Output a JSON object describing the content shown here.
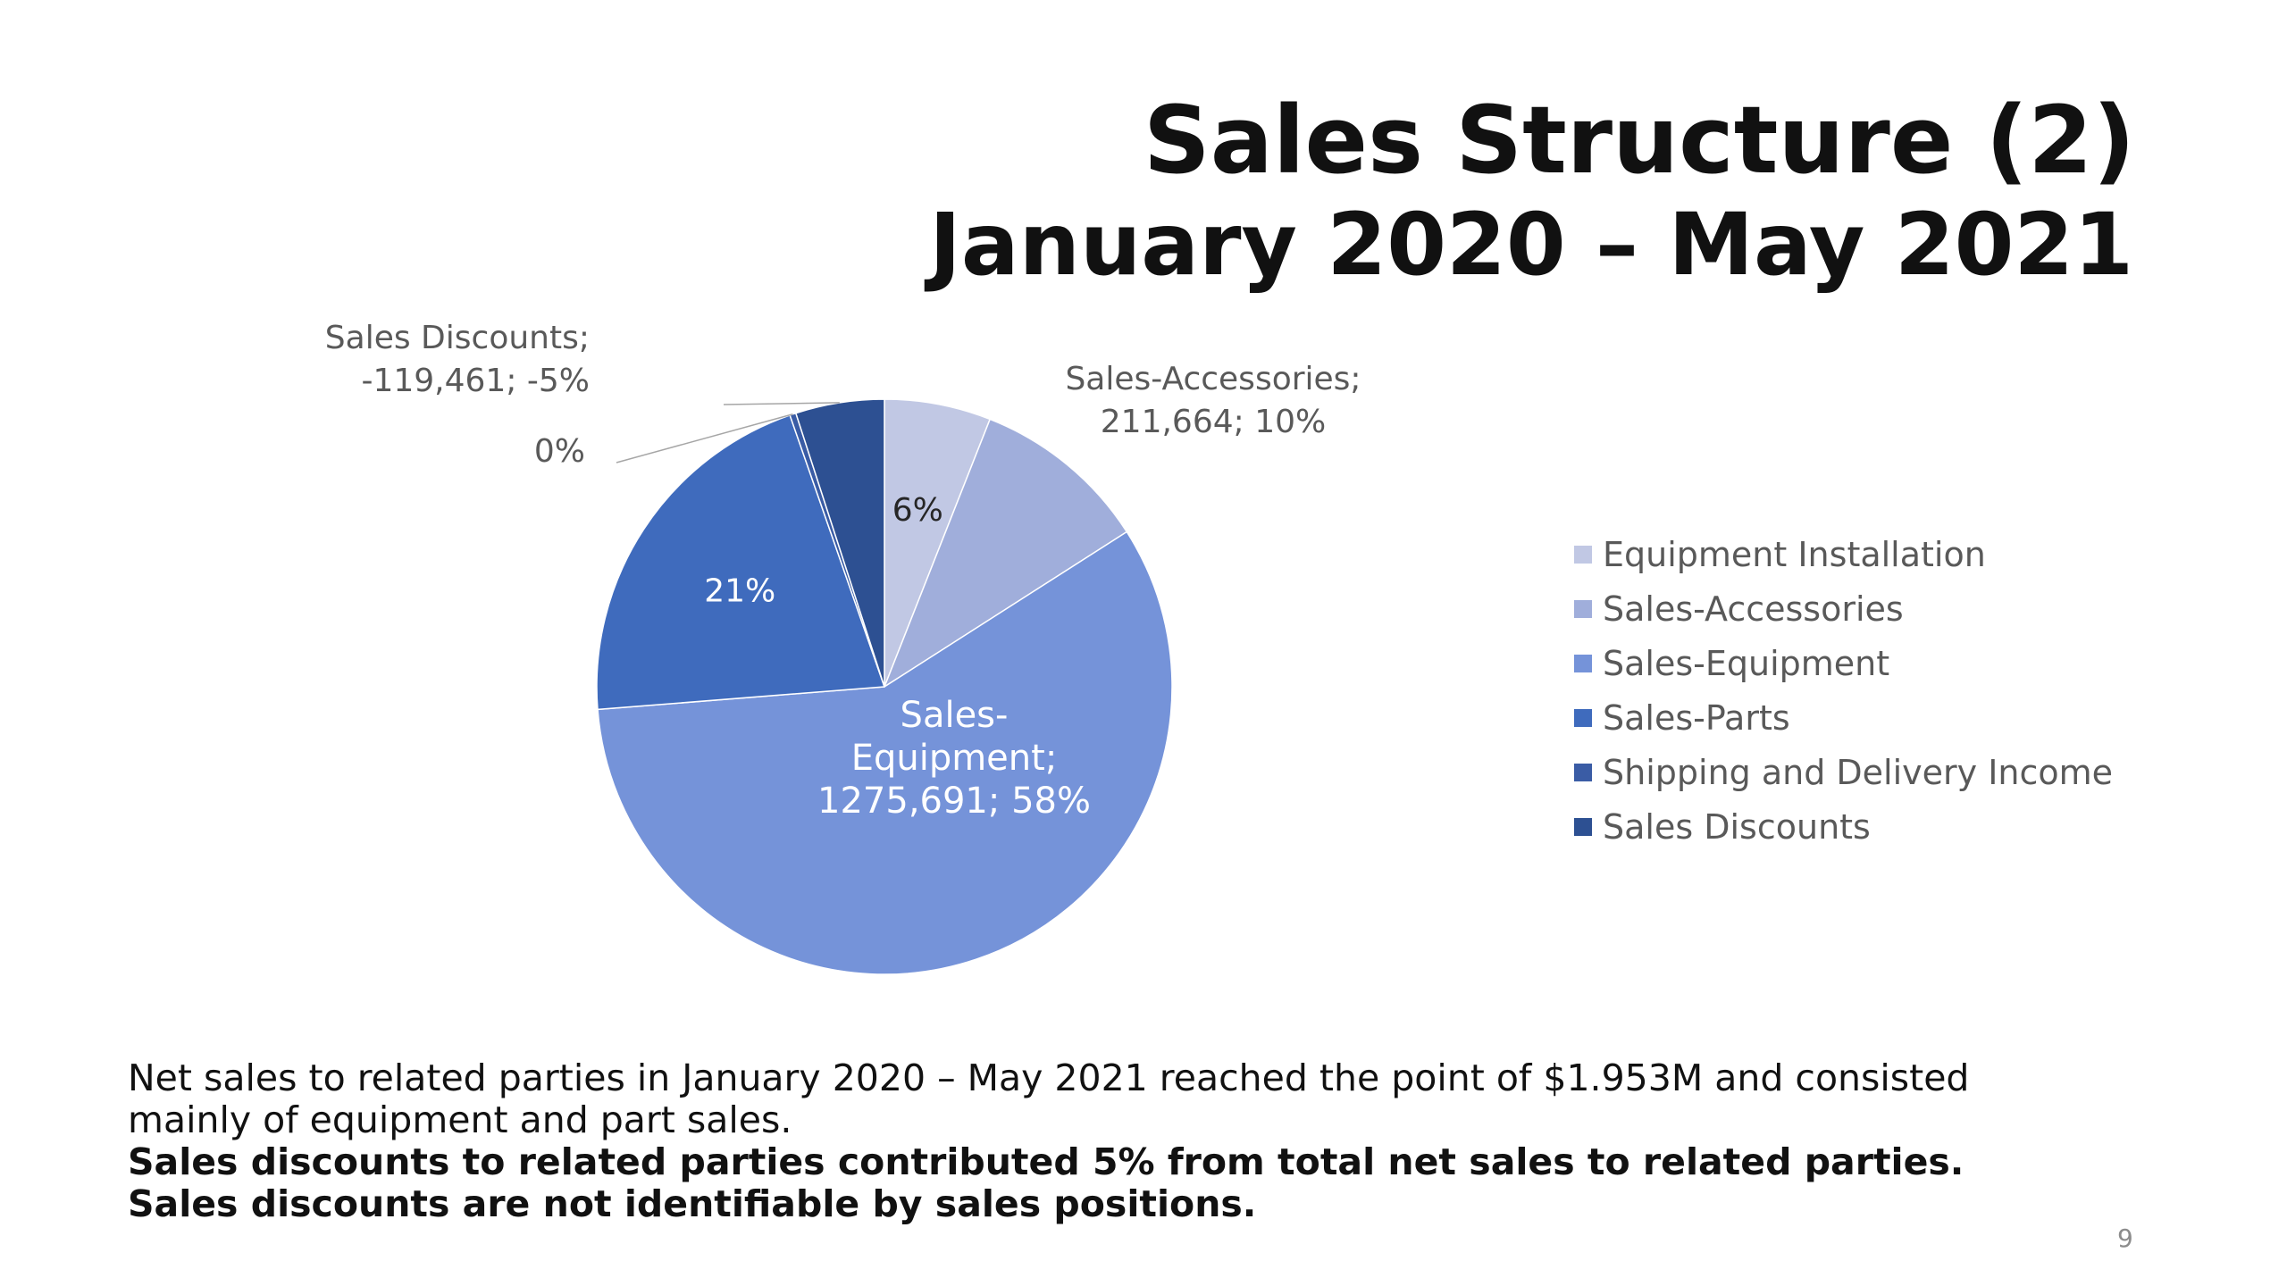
{
  "slide": {
    "title": "Sales Structure (2)",
    "subtitle": "January 2020 – May 2021",
    "body_line_1": "Net sales to related parties in January 2020 – May 2021 reached the point of $1.953M and consisted",
    "body_line_2": "mainly of equipment and part sales.",
    "body_line_3": "Sales discounts to related parties contributed 5% from total net sales to related parties.",
    "body_line_4": "Sales discounts are not identifiable by sales positions.",
    "page_number": "9"
  },
  "chart_data": {
    "type": "pie",
    "legend_position": "right",
    "slices": [
      {
        "name": "Equipment Installation",
        "percent": 6,
        "color": "#c1c8e4",
        "label_lines": [
          "6%"
        ],
        "label_color": "#262626"
      },
      {
        "name": "Sales-Accessories",
        "value": 211664,
        "percent": 10,
        "color": "#a0aedb",
        "label_lines": [
          "Sales-Accessories;",
          "211,664; 10%"
        ],
        "label_color": "#595959"
      },
      {
        "name": "Sales-Equipment",
        "value": 1275691,
        "percent": 58,
        "color": "#7593d9",
        "label_lines": [
          "Sales-",
          "Equipment;",
          "1275,691; 58%"
        ],
        "label_color": "#ffffff"
      },
      {
        "name": "Sales-Parts",
        "percent": 21,
        "color": "#3f6bbd",
        "label_lines": [
          "21%"
        ],
        "label_color": "#ffffff"
      },
      {
        "name": "Shipping and Delivery Income",
        "percent": 0,
        "color": "#3a5ca5",
        "label_lines": [
          "0%"
        ],
        "label_color": "#595959"
      },
      {
        "name": "Sales Discounts",
        "value": -119461,
        "percent": -5,
        "color": "#2d5092",
        "label_lines": [
          "Sales Discounts;",
          "-119,461; -5%"
        ],
        "label_color": "#595959"
      }
    ]
  }
}
